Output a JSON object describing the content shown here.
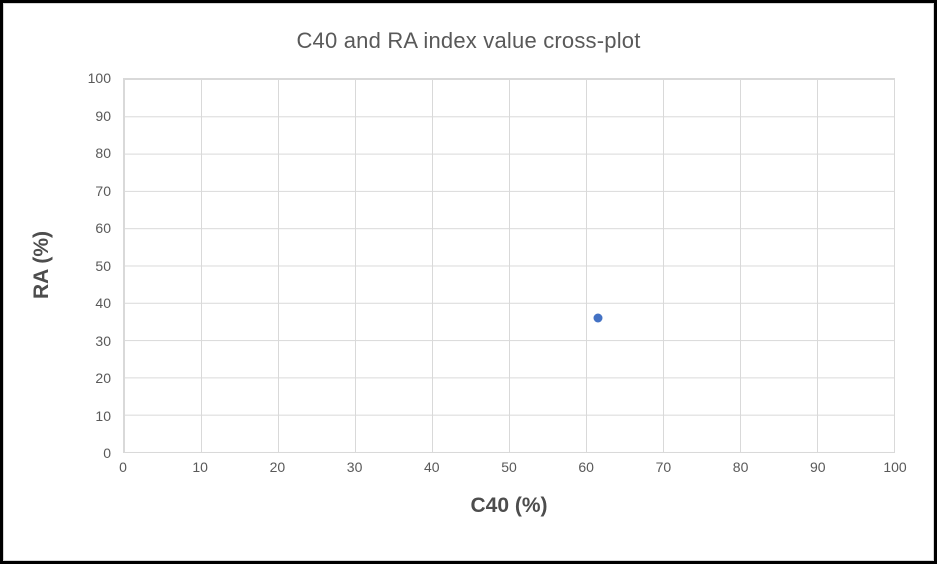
{
  "chart_data": {
    "type": "scatter",
    "title": "C40 and RA index value cross-plot",
    "xlabel": "C40 (%)",
    "ylabel": "RA (%)",
    "xlim": [
      0,
      100
    ],
    "ylim": [
      0,
      100
    ],
    "x_ticks": [
      "0",
      "10",
      "20",
      "30",
      "40",
      "50",
      "60",
      "70",
      "80",
      "90",
      "100"
    ],
    "y_ticks": [
      "0",
      "10",
      "20",
      "30",
      "40",
      "50",
      "60",
      "70",
      "80",
      "90",
      "100"
    ],
    "grid": true,
    "legend": "none",
    "marker_color": "#4472C4",
    "grid_color": "#D9D9D9",
    "text_color": "#595959",
    "frame_color": "#000000",
    "points": [
      {
        "x": 61.5,
        "y": 36
      }
    ]
  }
}
